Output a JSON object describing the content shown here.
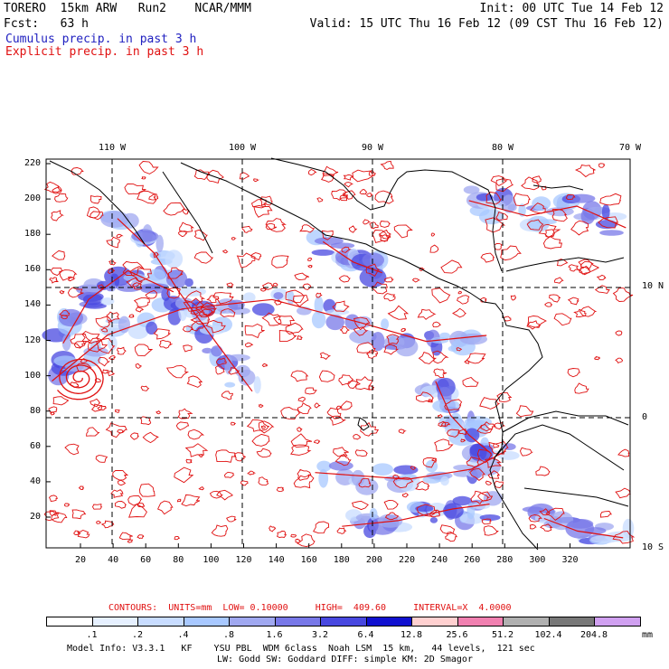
{
  "header": {
    "model": "TORERO  15km ARW   Run2    NCAR/MMM",
    "init": "Init: 00 UTC Tue 14 Feb 12",
    "fcst": "Fcst:   63 h",
    "valid": "Valid: 15 UTC Thu 16 Feb 12 (09 CST Thu 16 Feb 12)",
    "legend_cumulus": "Cumulus precip. in past 3 h",
    "legend_explicit": "Explicit precip. in past 3 h"
  },
  "colors": {
    "cumulus": "#2020c0",
    "explicit": "#e01010",
    "grid": "#000000"
  },
  "top_axis": [
    "110 W",
    "100 W",
    "90 W",
    "80 W",
    "70 W"
  ],
  "right_axis": [
    "10 N",
    "0",
    "10 S"
  ],
  "y_ticks": [
    "220",
    "200",
    "180",
    "160",
    "140",
    "120",
    "100",
    "80",
    "60",
    "40",
    "20"
  ],
  "x_ticks": [
    "20",
    "40",
    "60",
    "80",
    "100",
    "120",
    "140",
    "160",
    "180",
    "200",
    "220",
    "240",
    "260",
    "280",
    "300",
    "320"
  ],
  "contour_info": "CONTOURS:  UNITS=mm  LOW= 0.10000     HIGH=  409.60     INTERVAL=X  4.0000",
  "colorbar": {
    "labels": [
      ".1",
      ".2",
      ".4",
      ".8",
      "1.6",
      "3.2",
      "6.4",
      "12.8",
      "25.6",
      "51.2",
      "102.4",
      "204.8"
    ],
    "unit": "mm",
    "colors": [
      "#ffffff",
      "#e6f0ff",
      "#c8dcff",
      "#a8c8ff",
      "#a0a8f0",
      "#7878e8",
      "#4848e0",
      "#1010d0",
      "#ffd0d0",
      "#f080b0",
      "#b0b0b0",
      "#787878",
      "#d0a0f0"
    ]
  },
  "footer": {
    "line1": "Model Info: V3.3.1   KF    YSU PBL  WDM 6class  Noah LSM  15 km,   44 levels,  121 sec",
    "line2": "LW: Godd SW: Goddard DIFF: simple KM: 2D Smagor"
  }
}
